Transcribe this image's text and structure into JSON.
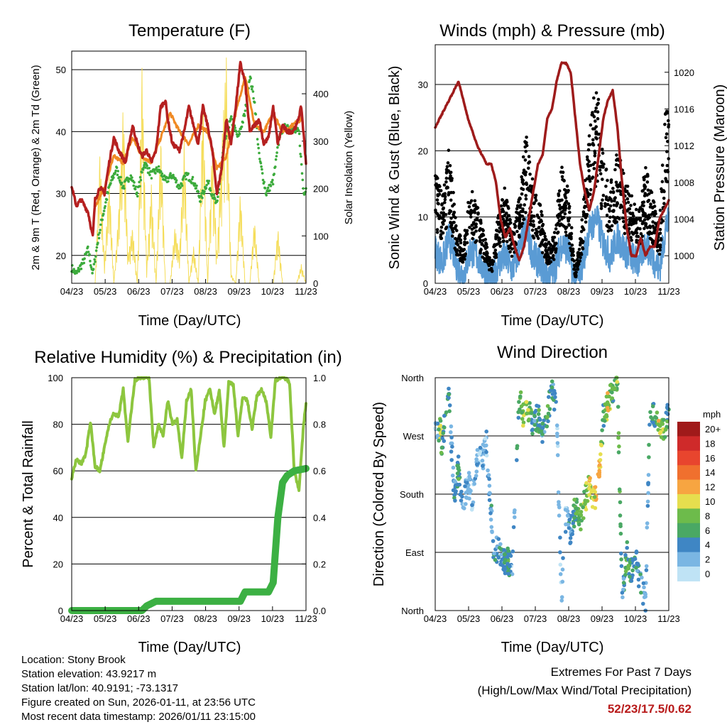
{
  "x_ticks": [
    "04/23",
    "05/23",
    "06/23",
    "07/23",
    "08/23",
    "09/23",
    "10/23",
    "11/23"
  ],
  "colors": {
    "t2m": "#b52020",
    "t9m": "#f08a24",
    "td2m": "#3cab3c",
    "solar": "#f5dd5a",
    "wind": "#5a9bd4",
    "gust": "#000000",
    "pressure": "#9e1b1b",
    "rh": "#8dc63f",
    "precip": "#3cb043"
  },
  "chart_data": [
    {
      "type": "line",
      "title": "Temperature (F)",
      "xlabel": "Time (Day/UTC)",
      "ylabel": "2m & 9m T (Red, Orange) & 2m Td (Green)",
      "y2label": "Solar Insolation (Yellow)",
      "ylim": [
        15.5,
        53
      ],
      "y2lim": [
        0,
        490
      ],
      "yticks": [
        20,
        30,
        40,
        50
      ],
      "y2ticks": [
        0,
        100,
        200,
        300,
        400
      ],
      "series": [
        {
          "name": "2m T",
          "axis": "y",
          "x": [
            0,
            0.02,
            0.04,
            0.07,
            0.09,
            0.1,
            0.12,
            0.14,
            0.16,
            0.18,
            0.2,
            0.23,
            0.26,
            0.28,
            0.3,
            0.32,
            0.34,
            0.36,
            0.38,
            0.4,
            0.41,
            0.43,
            0.46,
            0.48,
            0.5,
            0.52,
            0.54,
            0.56,
            0.58,
            0.6,
            0.62,
            0.64,
            0.66,
            0.68,
            0.7,
            0.72,
            0.74,
            0.76,
            0.78,
            0.8,
            0.82,
            0.84,
            0.86,
            0.88,
            0.9,
            0.92,
            0.94,
            0.96,
            0.98,
            1.0
          ],
          "values": [
            31,
            28,
            29,
            27,
            23,
            29,
            31,
            30,
            35,
            39,
            37,
            35,
            41,
            38,
            36,
            37,
            35,
            37,
            44,
            45,
            42,
            38,
            37,
            40,
            44,
            41,
            38,
            44,
            41,
            37,
            30,
            34,
            42,
            38,
            44,
            51,
            48,
            40,
            41,
            42,
            38,
            39,
            44,
            38,
            41,
            40,
            40,
            41,
            44,
            35
          ]
        },
        {
          "name": "9m T",
          "axis": "y",
          "x": [
            0.1,
            0.14,
            0.18,
            0.22,
            0.26,
            0.3,
            0.34,
            0.38,
            0.42,
            0.46,
            0.5,
            0.54,
            0.58,
            0.62,
            0.66,
            0.7,
            0.74,
            0.78,
            0.82,
            0.86,
            0.9,
            0.94,
            0.98
          ],
          "values": [
            28,
            31,
            36,
            35,
            39,
            36,
            35,
            39,
            43,
            40,
            38,
            41,
            40,
            34,
            36,
            43,
            49,
            41,
            40,
            43,
            40,
            41,
            42
          ]
        },
        {
          "name": "2m Td",
          "axis": "y",
          "x": [
            0,
            0.02,
            0.05,
            0.07,
            0.09,
            0.11,
            0.13,
            0.16,
            0.19,
            0.22,
            0.25,
            0.28,
            0.31,
            0.34,
            0.37,
            0.4,
            0.43,
            0.46,
            0.49,
            0.52,
            0.55,
            0.58,
            0.6,
            0.62,
            0.65,
            0.68,
            0.71,
            0.74,
            0.76,
            0.78,
            0.8,
            0.83,
            0.86,
            0.89,
            0.92,
            0.95,
            0.97,
            0.99,
            1.0
          ],
          "values": [
            18,
            17,
            19,
            21,
            17,
            22,
            26,
            31,
            34,
            31,
            33,
            30,
            35,
            33,
            34,
            32,
            33,
            31,
            33,
            32,
            29,
            32,
            30,
            28,
            38,
            42,
            39,
            43,
            49,
            45,
            36,
            30,
            32,
            40,
            41,
            40,
            40,
            30,
            31
          ]
        },
        {
          "name": "Solar Insolation",
          "axis": "y2",
          "x": [
            0.1,
            0.12,
            0.14,
            0.16,
            0.18,
            0.2,
            0.22,
            0.24,
            0.26,
            0.28,
            0.3,
            0.32,
            0.34,
            0.36,
            0.38,
            0.4,
            0.42,
            0.44,
            0.46,
            0.48,
            0.5,
            0.52,
            0.54,
            0.56,
            0.58,
            0.6,
            0.62,
            0.64,
            0.66,
            0.68,
            0.7,
            0.72,
            0.74,
            0.76,
            0.78,
            0.8,
            0.82,
            0.84,
            0.86,
            0.88,
            0.9,
            0.92,
            0.94,
            0.96,
            0.98,
            1.0
          ],
          "values": [
            0,
            280,
            40,
            230,
            0,
            150,
            380,
            60,
            120,
            0,
            460,
            30,
            210,
            0,
            320,
            0,
            0,
            120,
            60,
            300,
            0,
            80,
            0,
            400,
            0,
            300,
            60,
            290,
            480,
            20,
            0,
            200,
            0,
            0,
            140,
            0,
            0,
            0,
            0,
            120,
            0,
            0,
            0,
            0,
            40,
            0
          ]
        }
      ]
    },
    {
      "type": "scatter",
      "title": "Winds (mph) & Pressure (mb)",
      "xlabel": "Time (Day/UTC)",
      "ylabel": "Sonic Wind & Gust (Blue, Black)",
      "y2label": "Station Pressure (Maroon)",
      "ylim": [
        0,
        36
      ],
      "y2lim": [
        997,
        1023
      ],
      "yticks": [
        0,
        10,
        20,
        30
      ],
      "y2ticks": [
        1000,
        1004,
        1008,
        1012,
        1016,
        1020
      ],
      "series": [
        {
          "name": "Sonic Wind",
          "x": [
            0,
            0.03,
            0.06,
            0.09,
            0.12,
            0.15,
            0.18,
            0.21,
            0.24,
            0.27,
            0.3,
            0.33,
            0.36,
            0.39,
            0.42,
            0.45,
            0.48,
            0.51,
            0.54,
            0.57,
            0.6,
            0.63,
            0.66,
            0.69,
            0.72,
            0.75,
            0.78,
            0.81,
            0.84,
            0.87,
            0.9,
            0.93,
            0.96,
            0.99
          ],
          "values": [
            5,
            3,
            7,
            3,
            1,
            5,
            4,
            2,
            0,
            3,
            4,
            2,
            5,
            8,
            4,
            3,
            1,
            2,
            6,
            5,
            0,
            3,
            8,
            10,
            6,
            4,
            7,
            5,
            4,
            3,
            6,
            4,
            2,
            9
          ]
        },
        {
          "name": "Gust",
          "x": [
            0,
            0.03,
            0.06,
            0.09,
            0.12,
            0.15,
            0.18,
            0.21,
            0.24,
            0.27,
            0.3,
            0.33,
            0.36,
            0.39,
            0.42,
            0.45,
            0.48,
            0.51,
            0.54,
            0.57,
            0.6,
            0.63,
            0.66,
            0.69,
            0.72,
            0.75,
            0.78,
            0.81,
            0.84,
            0.87,
            0.9,
            0.93,
            0.96,
            0.99
          ],
          "values": [
            12,
            9,
            14,
            6,
            4,
            10,
            8,
            5,
            2,
            7,
            10,
            5,
            9,
            16,
            10,
            8,
            4,
            5,
            12,
            10,
            1,
            7,
            16,
            22,
            14,
            10,
            14,
            11,
            9,
            7,
            12,
            9,
            6,
            20
          ]
        },
        {
          "name": "Station Pressure",
          "x": [
            0,
            0.04,
            0.08,
            0.1,
            0.14,
            0.18,
            0.2,
            0.22,
            0.24,
            0.26,
            0.28,
            0.3,
            0.32,
            0.34,
            0.36,
            0.38,
            0.4,
            0.42,
            0.44,
            0.46,
            0.48,
            0.5,
            0.52,
            0.54,
            0.56,
            0.58,
            0.6,
            0.62,
            0.64,
            0.66,
            0.68,
            0.7,
            0.72,
            0.74,
            0.76,
            0.78,
            0.8,
            0.82,
            0.84,
            0.86,
            0.88,
            0.9,
            0.92,
            0.94,
            0.96,
            0.98,
            1.0
          ],
          "values": [
            1014,
            1016,
            1018,
            1019,
            1015,
            1012,
            1011,
            1010,
            1010,
            1008,
            1004,
            1002,
            1003,
            1001,
            999.5,
            1001,
            1004,
            1007,
            1010,
            1011,
            1015,
            1016,
            1019,
            1021,
            1021,
            1020,
            1015,
            1010,
            1007,
            1005,
            1007,
            1011,
            1015,
            1017,
            1018,
            1014,
            1008,
            1003,
            1000,
            1000,
            1002,
            1000,
            1001,
            1001,
            1004,
            1005,
            1006
          ]
        }
      ]
    },
    {
      "type": "line",
      "title": "Relative Humidity (%) & Precipitation (in)",
      "xlabel": "Time (Day/UTC)",
      "ylabel": "Percent & Total Rainfall",
      "ylim": [
        0,
        100
      ],
      "y2lim": [
        0,
        1.0
      ],
      "yticks": [
        0,
        20,
        40,
        60,
        80,
        100
      ],
      "y2ticks": [
        "0.0",
        "0.2",
        "0.4",
        "0.6",
        "0.8",
        "1.0"
      ],
      "series": [
        {
          "name": "Relative Humidity",
          "axis": "y",
          "x": [
            0,
            0.02,
            0.04,
            0.06,
            0.08,
            0.1,
            0.12,
            0.14,
            0.16,
            0.18,
            0.2,
            0.22,
            0.24,
            0.25,
            0.27,
            0.29,
            0.31,
            0.33,
            0.35,
            0.37,
            0.39,
            0.41,
            0.43,
            0.45,
            0.47,
            0.49,
            0.51,
            0.53,
            0.55,
            0.57,
            0.59,
            0.61,
            0.63,
            0.65,
            0.67,
            0.69,
            0.71,
            0.73,
            0.75,
            0.77,
            0.79,
            0.81,
            0.83,
            0.85,
            0.87,
            0.89,
            0.91,
            0.93,
            0.95,
            0.97,
            0.99,
            1.0
          ],
          "values": [
            57,
            65,
            63,
            67,
            81,
            62,
            60,
            70,
            80,
            85,
            83,
            95,
            72,
            82,
            99,
            100,
            100,
            100,
            70,
            80,
            75,
            90,
            80,
            82,
            65,
            90,
            95,
            60,
            75,
            90,
            95,
            84,
            95,
            70,
            98,
            97,
            75,
            92,
            90,
            78,
            92,
            95,
            90,
            75,
            99,
            100,
            100,
            98,
            60,
            52,
            80,
            89
          ]
        },
        {
          "name": "Total Precipitation",
          "axis": "y2",
          "x": [
            0,
            0.3,
            0.32,
            0.34,
            0.36,
            0.72,
            0.74,
            0.84,
            0.86,
            0.88,
            0.9,
            0.92,
            0.95,
            1.0
          ],
          "values": [
            0,
            0,
            0.02,
            0.03,
            0.04,
            0.04,
            0.08,
            0.08,
            0.12,
            0.4,
            0.55,
            0.58,
            0.6,
            0.61
          ]
        }
      ]
    },
    {
      "type": "scatter",
      "title": "Wind Direction",
      "xlabel": "Time (Day/UTC)",
      "ylabel": "Direction (Colored By Speed)",
      "ylim": [
        0,
        360
      ],
      "yticks": [
        "North",
        "East",
        "South",
        "West",
        "North"
      ],
      "colorbar": {
        "unit": "mph",
        "labels": [
          "20+",
          "18",
          "16",
          "14",
          "12",
          "10",
          "8",
          "6",
          "4",
          "2",
          "0"
        ],
        "colors": [
          "#a01a1a",
          "#cf2a2a",
          "#e8452e",
          "#f0702e",
          "#f7a541",
          "#e6de4e",
          "#6dbb4b",
          "#4aa864",
          "#3f86c4",
          "#7ab6e3",
          "#bfe3f5"
        ]
      },
      "series": [
        {
          "name": "Direction",
          "x": [
            0.01,
            0.02,
            0.03,
            0.05,
            0.06,
            0.08,
            0.1,
            0.12,
            0.14,
            0.16,
            0.18,
            0.2,
            0.22,
            0.25,
            0.27,
            0.29,
            0.31,
            0.33,
            0.36,
            0.38,
            0.4,
            0.42,
            0.44,
            0.46,
            0.48,
            0.5,
            0.52,
            0.54,
            0.56,
            0.58,
            0.6,
            0.62,
            0.64,
            0.66,
            0.68,
            0.7,
            0.72,
            0.74,
            0.76,
            0.78,
            0.8,
            0.82,
            0.84,
            0.86,
            0.88,
            0.9,
            0.92,
            0.94,
            0.96,
            0.98,
            0.99
          ],
          "values": [
            270,
            285,
            250,
            320,
            330,
            180,
            220,
            160,
            200,
            170,
            240,
            230,
            260,
            90,
            95,
            75,
            80,
            60,
            330,
            300,
            310,
            290,
            300,
            270,
            300,
            345,
            310,
            20,
            150,
            120,
            160,
            140,
            170,
            190,
            170,
            200,
            300,
            320,
            340,
            360,
            10,
            90,
            60,
            80,
            40,
            10,
            320,
            300,
            290,
            280,
            300
          ],
          "speeds": [
            2,
            10,
            4,
            6,
            4,
            4,
            6,
            2,
            2,
            2,
            2,
            2,
            2,
            4,
            4,
            4,
            6,
            2,
            6,
            10,
            8,
            4,
            6,
            4,
            6,
            4,
            2,
            2,
            2,
            4,
            6,
            8,
            8,
            10,
            10,
            12,
            6,
            10,
            6,
            8,
            4,
            6,
            6,
            4,
            4,
            2,
            6,
            6,
            10,
            8,
            6
          ]
        }
      ]
    }
  ],
  "footer_left": {
    "location": "Location: Stony Brook",
    "elevation": "Station elevation: 43.9217 m",
    "latlon": "Station lat/lon: 40.9191; -73.1317",
    "created": "Figure created on Sun, 2026-01-11, at 23:56 UTC",
    "recent": "Most recent data timestamp: 2026/01/11 23:15:00"
  },
  "footer_right": {
    "heading": "Extremes For Past 7 Days",
    "subheading": "(High/Low/Max Wind/Total Precipitation)",
    "value": "52/23/17.5/0.62"
  }
}
